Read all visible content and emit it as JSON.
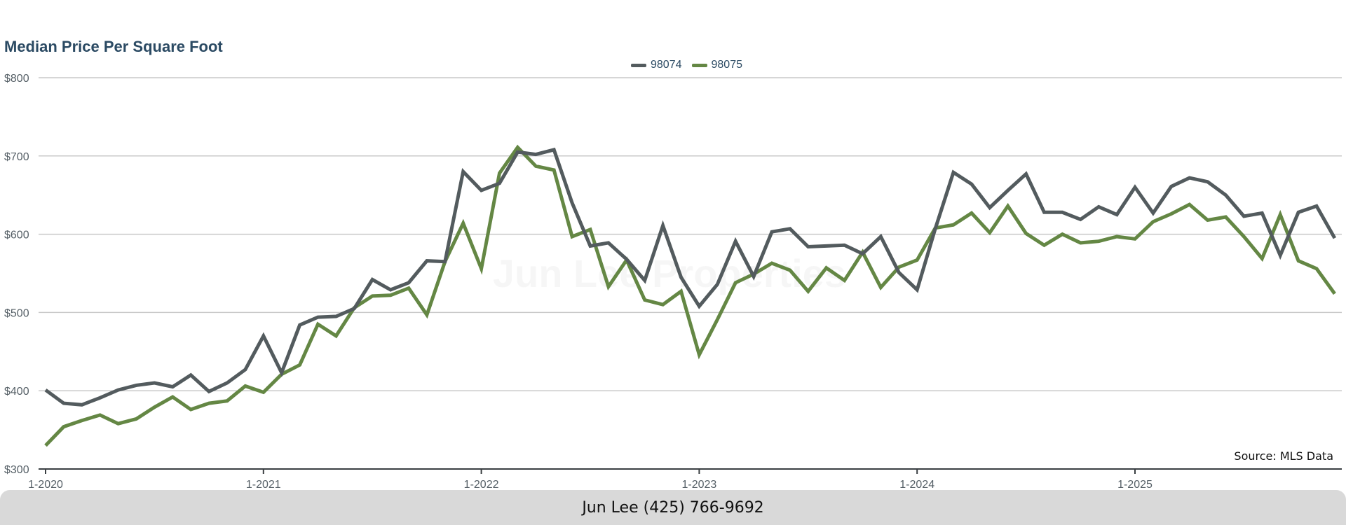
{
  "colors": {
    "series_98074": "#535b5e",
    "series_98075": "#648744",
    "grid": "#c8c8c8",
    "axis": "#3a3f42",
    "title": "#2b4a63"
  },
  "watermark": "Jun Lee Properties",
  "source": "Source: MLS Data",
  "footer": "Jun Lee (425) 766-9692",
  "chart_data": {
    "type": "line",
    "title": "Median Price Per Square Foot",
    "xlabel": "",
    "ylabel": "",
    "ylim": [
      300,
      800
    ],
    "yticks": [
      "$300",
      "$400",
      "$500",
      "$600",
      "$700",
      "$800"
    ],
    "ytick_values": [
      300,
      400,
      500,
      600,
      700,
      800
    ],
    "x_range": [
      "1-2020",
      "12-2025"
    ],
    "xticks": [
      "1-2020",
      "1-2021",
      "1-2022",
      "1-2023",
      "1-2024",
      "1-2025"
    ],
    "xtick_index": [
      0,
      12,
      24,
      36,
      48,
      60
    ],
    "grid": true,
    "legend_position": "top-center",
    "series": [
      {
        "name": "98074",
        "values": [
          401,
          384,
          382,
          391,
          401,
          407,
          410,
          405,
          420,
          399,
          410,
          427,
          470,
          423,
          484,
          494,
          495,
          505,
          542,
          529,
          538,
          566,
          565,
          680,
          656,
          665,
          705,
          702,
          708,
          640,
          585,
          589,
          568,
          541,
          611,
          545,
          508,
          536,
          591,
          546,
          603,
          607,
          584,
          585,
          586,
          575,
          597,
          551,
          529,
          607,
          679,
          664,
          634,
          656,
          677,
          628,
          628,
          619,
          635,
          625,
          660,
          627,
          661,
          672,
          667,
          650,
          623,
          627,
          573,
          628,
          636,
          595
        ]
      },
      {
        "name": "98075",
        "values": [
          330,
          354,
          362,
          369,
          358,
          364,
          379,
          392,
          376,
          384,
          387,
          406,
          398,
          421,
          433,
          485,
          470,
          506,
          521,
          522,
          531,
          497,
          565,
          614,
          556,
          678,
          711,
          687,
          682,
          597,
          606,
          533,
          567,
          516,
          510,
          527,
          446,
          491,
          538,
          549,
          563,
          554,
          527,
          557,
          541,
          577,
          532,
          558,
          567,
          608,
          612,
          627,
          602,
          636,
          601,
          586,
          600,
          589,
          591,
          597,
          594,
          616,
          626,
          638,
          618,
          622,
          597,
          569,
          625,
          566,
          556,
          524
        ]
      }
    ]
  }
}
